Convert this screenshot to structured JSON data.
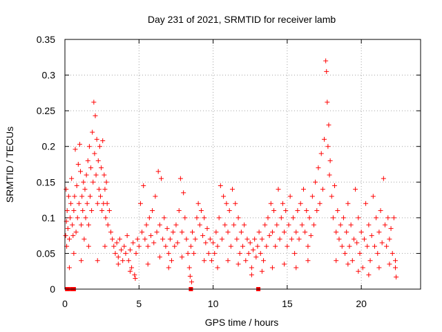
{
  "chart_data": {
    "type": "scatter",
    "title": "Day 231 of 2021, SRMTID for receiver lamb",
    "xlabel": "GPS time / hours",
    "ylabel": "SRMTID / TECUs",
    "xlim": [
      0,
      24
    ],
    "ylim": [
      0,
      0.35
    ],
    "xticks": [
      0,
      5,
      10,
      15,
      20
    ],
    "xtick_labels": [
      "0",
      "5",
      "10",
      "15",
      "20"
    ],
    "yticks": [
      0,
      0.05,
      0.1,
      0.15,
      0.2,
      0.25,
      0.3,
      0.35
    ],
    "ytick_labels": [
      "0",
      "0.05",
      "0.1",
      "0.15",
      "0.2",
      "0.25",
      "0.3",
      "0.35"
    ],
    "grid": true,
    "marker": "plus",
    "series_color": "#ff0000",
    "points": [
      [
        0.05,
        0.075
      ],
      [
        0.08,
        0.14
      ],
      [
        0.1,
        0.095
      ],
      [
        0.12,
        0.06
      ],
      [
        0.15,
        0.11
      ],
      [
        0.2,
        0.085
      ],
      [
        0.25,
        0.13
      ],
      [
        0.3,
        0.07
      ],
      [
        0.35,
        0.1
      ],
      [
        0.4,
        0.12
      ],
      [
        0.45,
        0.155
      ],
      [
        0.5,
        0.09
      ],
      [
        0.55,
        0.075
      ],
      [
        0.6,
        0.11
      ],
      [
        0.65,
        0.13
      ],
      [
        0.7,
        0.196
      ],
      [
        0.75,
        0.08
      ],
      [
        0.8,
        0.145
      ],
      [
        0.85,
        0.1
      ],
      [
        0.9,
        0.175
      ],
      [
        0.95,
        0.12
      ],
      [
        1.0,
        0.203
      ],
      [
        1.05,
        0.165
      ],
      [
        1.1,
        0.09
      ],
      [
        1.15,
        0.13
      ],
      [
        1.2,
        0.11
      ],
      [
        1.25,
        0.15
      ],
      [
        1.3,
        0.07
      ],
      [
        1.35,
        0.14
      ],
      [
        1.4,
        0.1
      ],
      [
        1.45,
        0.16
      ],
      [
        1.5,
        0.12
      ],
      [
        1.55,
        0.18
      ],
      [
        1.6,
        0.09
      ],
      [
        1.65,
        0.2
      ],
      [
        1.7,
        0.13
      ],
      [
        1.75,
        0.17
      ],
      [
        1.8,
        0.11
      ],
      [
        1.85,
        0.22
      ],
      [
        1.9,
        0.15
      ],
      [
        1.95,
        0.262
      ],
      [
        2.0,
        0.19
      ],
      [
        2.05,
        0.243
      ],
      [
        2.1,
        0.16
      ],
      [
        2.15,
        0.21
      ],
      [
        2.2,
        0.12
      ],
      [
        2.25,
        0.18
      ],
      [
        2.3,
        0.14
      ],
      [
        2.35,
        0.2
      ],
      [
        2.4,
        0.13
      ],
      [
        2.45,
        0.17
      ],
      [
        2.5,
        0.11
      ],
      [
        2.55,
        0.208
      ],
      [
        2.6,
        0.12
      ],
      [
        2.65,
        0.16
      ],
      [
        2.7,
        0.14
      ],
      [
        2.75,
        0.1
      ],
      [
        2.8,
        0.15
      ],
      [
        2.85,
        0.12
      ],
      [
        2.9,
        0.09
      ],
      [
        3.0,
        0.11
      ],
      [
        3.1,
        0.08
      ],
      [
        3.2,
        0.07
      ],
      [
        3.3,
        0.06
      ],
      [
        3.4,
        0.05
      ],
      [
        3.5,
        0.065
      ],
      [
        3.6,
        0.045
      ],
      [
        3.7,
        0.07
      ],
      [
        3.8,
        0.055
      ],
      [
        3.9,
        0.04
      ],
      [
        4.0,
        0.06
      ],
      [
        4.1,
        0.05
      ],
      [
        4.2,
        0.075
      ],
      [
        4.3,
        0.04
      ],
      [
        4.4,
        0.055
      ],
      [
        4.5,
        0.03
      ],
      [
        4.6,
        0.065
      ],
      [
        4.7,
        0.02
      ],
      [
        4.8,
        0.05
      ],
      [
        4.9,
        0.07
      ],
      [
        5.0,
        0.06
      ],
      [
        5.1,
        0.12
      ],
      [
        5.2,
        0.08
      ],
      [
        5.3,
        0.145
      ],
      [
        5.4,
        0.07
      ],
      [
        5.5,
        0.09
      ],
      [
        5.6,
        0.06
      ],
      [
        5.7,
        0.1
      ],
      [
        5.8,
        0.075
      ],
      [
        5.9,
        0.11
      ],
      [
        6.0,
        0.065
      ],
      [
        6.1,
        0.13
      ],
      [
        6.2,
        0.08
      ],
      [
        6.3,
        0.165
      ],
      [
        6.4,
        0.09
      ],
      [
        6.5,
        0.155
      ],
      [
        6.6,
        0.07
      ],
      [
        6.7,
        0.1
      ],
      [
        6.8,
        0.06
      ],
      [
        6.9,
        0.085
      ],
      [
        7.0,
        0.05
      ],
      [
        7.1,
        0.07
      ],
      [
        7.2,
        0.04
      ],
      [
        7.3,
        0.08
      ],
      [
        7.4,
        0.06
      ],
      [
        7.5,
        0.09
      ],
      [
        7.6,
        0.065
      ],
      [
        7.7,
        0.11
      ],
      [
        7.8,
        0.155
      ],
      [
        7.9,
        0.08
      ],
      [
        8.0,
        0.135
      ],
      [
        8.1,
        0.1
      ],
      [
        8.2,
        0.07
      ],
      [
        8.3,
        0.05
      ],
      [
        8.4,
        0.03
      ],
      [
        8.5,
        0.06
      ],
      [
        8.6,
        0.08
      ],
      [
        8.7,
        0.05
      ],
      [
        8.8,
        0.07
      ],
      [
        8.9,
        0.1
      ],
      [
        9.0,
        0.12
      ],
      [
        9.1,
        0.09
      ],
      [
        9.2,
        0.11
      ],
      [
        9.3,
        0.075
      ],
      [
        9.4,
        0.1
      ],
      [
        9.5,
        0.065
      ],
      [
        9.6,
        0.085
      ],
      [
        9.7,
        0.05
      ],
      [
        9.8,
        0.07
      ],
      [
        9.9,
        0.04
      ],
      [
        10.0,
        0.065
      ],
      [
        10.1,
        0.05
      ],
      [
        10.2,
        0.08
      ],
      [
        10.3,
        0.06
      ],
      [
        10.4,
        0.1
      ],
      [
        10.5,
        0.145
      ],
      [
        10.6,
        0.07
      ],
      [
        10.7,
        0.13
      ],
      [
        10.8,
        0.09
      ],
      [
        10.9,
        0.12
      ],
      [
        11.0,
        0.08
      ],
      [
        11.1,
        0.11
      ],
      [
        11.2,
        0.06
      ],
      [
        11.3,
        0.14
      ],
      [
        11.4,
        0.09
      ],
      [
        11.5,
        0.12
      ],
      [
        11.6,
        0.07
      ],
      [
        11.7,
        0.1
      ],
      [
        11.8,
        0.05
      ],
      [
        11.9,
        0.08
      ],
      [
        12.0,
        0.06
      ],
      [
        12.1,
        0.09
      ],
      [
        12.2,
        0.04
      ],
      [
        12.3,
        0.07
      ],
      [
        12.4,
        0.05
      ],
      [
        12.5,
        0.065
      ],
      [
        12.6,
        0.03
      ],
      [
        12.7,
        0.055
      ],
      [
        12.8,
        0.07
      ],
      [
        12.9,
        0.045
      ],
      [
        13.0,
        0.06
      ],
      [
        13.1,
        0.08
      ],
      [
        13.2,
        0.05
      ],
      [
        13.3,
        0.07
      ],
      [
        13.4,
        0.04
      ],
      [
        13.5,
        0.09
      ],
      [
        13.6,
        0.06
      ],
      [
        13.7,
        0.1
      ],
      [
        13.8,
        0.075
      ],
      [
        13.9,
        0.12
      ],
      [
        14.0,
        0.08
      ],
      [
        14.1,
        0.11
      ],
      [
        14.2,
        0.06
      ],
      [
        14.3,
        0.09
      ],
      [
        14.4,
        0.14
      ],
      [
        14.5,
        0.07
      ],
      [
        14.6,
        0.1
      ],
      [
        14.7,
        0.12
      ],
      [
        14.8,
        0.08
      ],
      [
        14.9,
        0.11
      ],
      [
        15.0,
        0.06
      ],
      [
        15.1,
        0.09
      ],
      [
        15.2,
        0.13
      ],
      [
        15.3,
        0.07
      ],
      [
        15.4,
        0.1
      ],
      [
        15.5,
        0.05
      ],
      [
        15.6,
        0.08
      ],
      [
        15.7,
        0.11
      ],
      [
        15.8,
        0.07
      ],
      [
        15.9,
        0.12
      ],
      [
        16.0,
        0.09
      ],
      [
        16.1,
        0.14
      ],
      [
        16.2,
        0.08
      ],
      [
        16.3,
        0.11
      ],
      [
        16.4,
        0.06
      ],
      [
        16.5,
        0.1
      ],
      [
        16.6,
        0.075
      ],
      [
        16.7,
        0.13
      ],
      [
        16.8,
        0.09
      ],
      [
        16.9,
        0.15
      ],
      [
        17.0,
        0.11
      ],
      [
        17.1,
        0.17
      ],
      [
        17.2,
        0.12
      ],
      [
        17.3,
        0.19
      ],
      [
        17.4,
        0.14
      ],
      [
        17.5,
        0.21
      ],
      [
        17.6,
        0.32
      ],
      [
        17.65,
        0.305
      ],
      [
        17.7,
        0.262
      ],
      [
        17.75,
        0.2
      ],
      [
        17.8,
        0.23
      ],
      [
        17.85,
        0.16
      ],
      [
        17.9,
        0.18
      ],
      [
        18.0,
        0.13
      ],
      [
        18.1,
        0.1
      ],
      [
        18.2,
        0.145
      ],
      [
        18.3,
        0.08
      ],
      [
        18.4,
        0.11
      ],
      [
        18.5,
        0.07
      ],
      [
        18.6,
        0.09
      ],
      [
        18.7,
        0.06
      ],
      [
        18.8,
        0.1
      ],
      [
        18.9,
        0.05
      ],
      [
        19.0,
        0.08
      ],
      [
        19.1,
        0.12
      ],
      [
        19.2,
        0.06
      ],
      [
        19.3,
        0.09
      ],
      [
        19.4,
        0.04
      ],
      [
        19.5,
        0.07
      ],
      [
        19.6,
        0.14
      ],
      [
        19.7,
        0.065
      ],
      [
        19.8,
        0.1
      ],
      [
        19.9,
        0.05
      ],
      [
        20.0,
        0.08
      ],
      [
        20.1,
        0.03
      ],
      [
        20.2,
        0.07
      ],
      [
        20.3,
        0.12
      ],
      [
        20.4,
        0.06
      ],
      [
        20.5,
        0.09
      ],
      [
        20.6,
        0.04
      ],
      [
        20.7,
        0.075
      ],
      [
        20.8,
        0.13
      ],
      [
        20.9,
        0.06
      ],
      [
        21.0,
        0.1
      ],
      [
        21.1,
        0.05
      ],
      [
        21.2,
        0.08
      ],
      [
        21.3,
        0.11
      ],
      [
        21.4,
        0.065
      ],
      [
        21.5,
        0.155
      ],
      [
        21.6,
        0.09
      ],
      [
        21.7,
        0.06
      ],
      [
        21.8,
        0.1
      ],
      [
        21.9,
        0.07
      ],
      [
        22.0,
        0.085
      ],
      [
        22.1,
        0.05
      ],
      [
        22.2,
        0.1
      ],
      [
        22.3,
        0.04
      ],
      [
        22.35,
        0.017
      ],
      [
        0.3,
        0.03
      ],
      [
        0.6,
        0.05
      ],
      [
        1.1,
        0.04
      ],
      [
        1.6,
        0.06
      ],
      [
        2.2,
        0.04
      ],
      [
        2.7,
        0.06
      ],
      [
        3.6,
        0.035
      ],
      [
        4.4,
        0.025
      ],
      [
        4.75,
        0.015
      ],
      [
        5.6,
        0.035
      ],
      [
        6.4,
        0.045
      ],
      [
        7.0,
        0.03
      ],
      [
        7.9,
        0.045
      ],
      [
        8.45,
        0.018
      ],
      [
        8.55,
        0.01
      ],
      [
        9.4,
        0.04
      ],
      [
        10.3,
        0.03
      ],
      [
        11.0,
        0.04
      ],
      [
        11.7,
        0.035
      ],
      [
        12.6,
        0.02
      ],
      [
        13.3,
        0.025
      ],
      [
        14.0,
        0.03
      ],
      [
        14.8,
        0.035
      ],
      [
        15.6,
        0.03
      ],
      [
        16.4,
        0.04
      ],
      [
        18.3,
        0.04
      ],
      [
        19.1,
        0.035
      ],
      [
        19.8,
        0.025
      ],
      [
        20.5,
        0.02
      ],
      [
        21.2,
        0.03
      ],
      [
        21.9,
        0.035
      ],
      [
        22.3,
        0.03
      ]
    ],
    "zero_markers": [
      0.15,
      0.22,
      0.5,
      0.6,
      8.5,
      13.05
    ]
  }
}
